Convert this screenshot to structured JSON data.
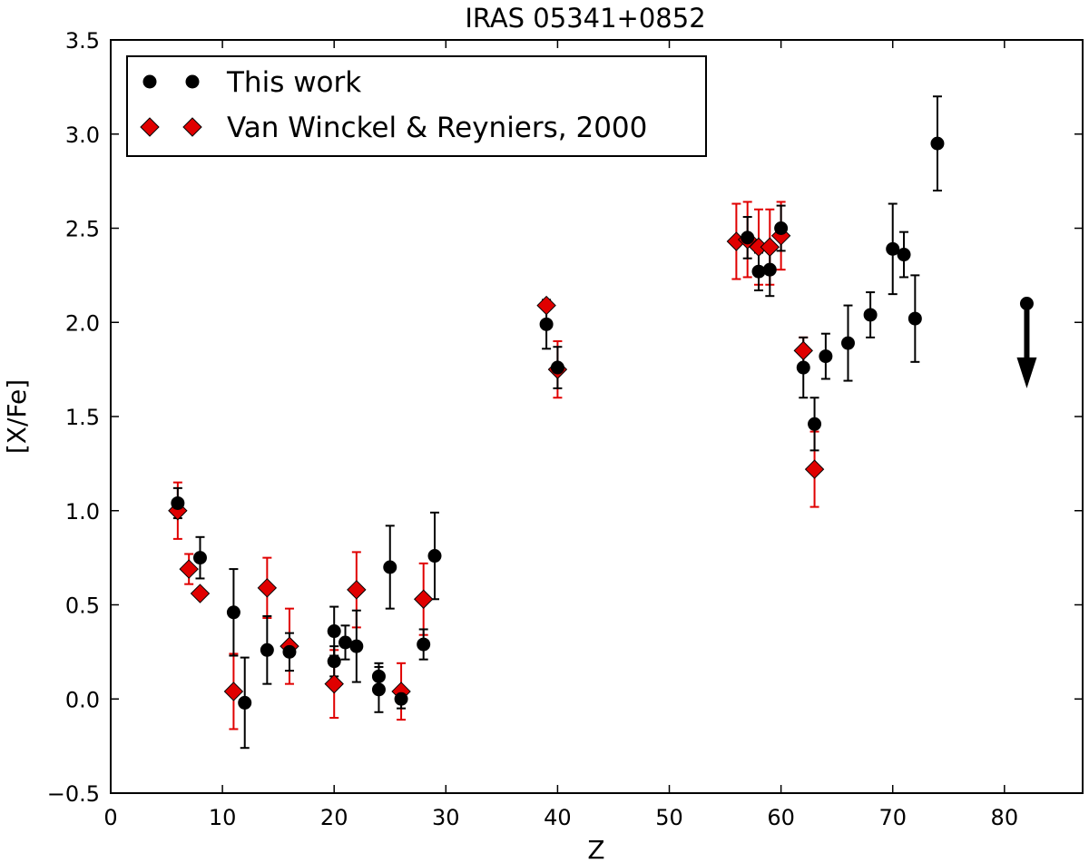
{
  "chart_data": {
    "type": "scatter",
    "title": "IRAS 05341+0852",
    "xlabel": "Z",
    "ylabel": "[X/Fe]",
    "xlim": [
      0,
      87
    ],
    "ylim": [
      -0.5,
      3.5
    ],
    "xticks": [
      "0",
      "10",
      "20",
      "30",
      "40",
      "50",
      "60",
      "70",
      "80"
    ],
    "yticks": [
      "−0.5",
      "0.0",
      "0.5",
      "1.0",
      "1.5",
      "2.0",
      "2.5",
      "3.0",
      "3.5"
    ],
    "legend_position": "top-left",
    "grid": false,
    "series": [
      {
        "name": "This work",
        "marker": "circle",
        "color": "#000000",
        "errorbar_color": "#000000",
        "points": [
          {
            "x": 6,
            "y": 1.04,
            "err": 0.08
          },
          {
            "x": 8,
            "y": 0.75,
            "err": 0.11
          },
          {
            "x": 11,
            "y": 0.46,
            "err": 0.23
          },
          {
            "x": 12,
            "y": -0.02,
            "err": 0.24
          },
          {
            "x": 14,
            "y": 0.26,
            "err": 0.18
          },
          {
            "x": 16,
            "y": 0.25,
            "err": 0.1
          },
          {
            "x": 20,
            "y": 0.36,
            "err": 0.13
          },
          {
            "x": 20,
            "y": 0.2,
            "err": 0.08
          },
          {
            "x": 21,
            "y": 0.3,
            "err": 0.09
          },
          {
            "x": 22,
            "y": 0.28,
            "err": 0.19
          },
          {
            "x": 24,
            "y": 0.12,
            "err": 0.07
          },
          {
            "x": 24,
            "y": 0.05,
            "err": 0.12
          },
          {
            "x": 25,
            "y": 0.7,
            "err": 0.22
          },
          {
            "x": 26,
            "y": 0.0,
            "err": 0.05
          },
          {
            "x": 28,
            "y": 0.29,
            "err": 0.08
          },
          {
            "x": 29,
            "y": 0.76,
            "err": 0.23
          },
          {
            "x": 39,
            "y": 1.99,
            "err": 0.13
          },
          {
            "x": 40,
            "y": 1.76,
            "err": 0.11
          },
          {
            "x": 57,
            "y": 2.45,
            "err": 0.11
          },
          {
            "x": 58,
            "y": 2.27,
            "err": 0.1
          },
          {
            "x": 59,
            "y": 2.28,
            "err": 0.14
          },
          {
            "x": 60,
            "y": 2.5,
            "err": 0.12
          },
          {
            "x": 62,
            "y": 1.76,
            "err": 0.16
          },
          {
            "x": 63,
            "y": 1.46,
            "err": 0.14
          },
          {
            "x": 64,
            "y": 1.82,
            "err": 0.12
          },
          {
            "x": 66,
            "y": 1.89,
            "err": 0.2
          },
          {
            "x": 68,
            "y": 2.04,
            "err": 0.12
          },
          {
            "x": 70,
            "y": 2.39,
            "err": 0.24
          },
          {
            "x": 71,
            "y": 2.36,
            "err": 0.12
          },
          {
            "x": 72,
            "y": 2.02,
            "err": 0.23
          },
          {
            "x": 74,
            "y": 2.95,
            "err": 0.25
          }
        ],
        "upper_limits": [
          {
            "x": 82,
            "y": 2.1,
            "arrow_to": 1.65
          }
        ]
      },
      {
        "name": "Van Winckel & Reyniers, 2000",
        "marker": "diamond",
        "color": "#e00000",
        "errorbar_color": "#e00000",
        "points": [
          {
            "x": 6,
            "y": 1.0,
            "err": 0.15
          },
          {
            "x": 7,
            "y": 0.69,
            "err": 0.08
          },
          {
            "x": 8,
            "y": 0.56,
            "err": 0.0
          },
          {
            "x": 11,
            "y": 0.04,
            "err": 0.2
          },
          {
            "x": 14,
            "y": 0.59,
            "err": 0.16
          },
          {
            "x": 16,
            "y": 0.28,
            "err": 0.2
          },
          {
            "x": 20,
            "y": 0.08,
            "err": 0.18
          },
          {
            "x": 22,
            "y": 0.58,
            "err": 0.2
          },
          {
            "x": 26,
            "y": 0.04,
            "err": 0.15
          },
          {
            "x": 28,
            "y": 0.53,
            "err": 0.19
          },
          {
            "x": 39,
            "y": 2.09,
            "err": 0.0
          },
          {
            "x": 40,
            "y": 1.75,
            "err": 0.15
          },
          {
            "x": 56,
            "y": 2.43,
            "err": 0.2
          },
          {
            "x": 57,
            "y": 2.44,
            "err": 0.2
          },
          {
            "x": 58,
            "y": 2.4,
            "err": 0.2
          },
          {
            "x": 59,
            "y": 2.4,
            "err": 0.2
          },
          {
            "x": 60,
            "y": 2.46,
            "err": 0.18
          },
          {
            "x": 62,
            "y": 1.85,
            "err": 0.07
          },
          {
            "x": 63,
            "y": 1.22,
            "err": 0.2
          }
        ]
      }
    ]
  }
}
